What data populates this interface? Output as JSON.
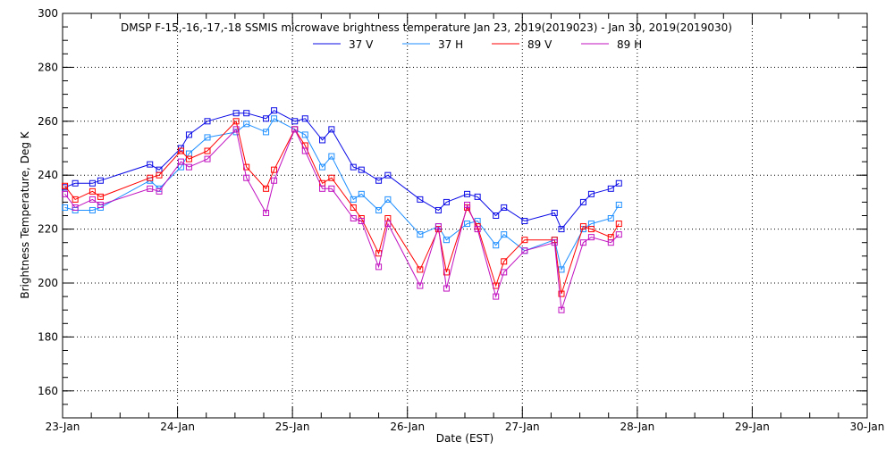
{
  "chart_data": {
    "type": "line",
    "title": "DMSP F-15,-16,-17,-18 SSMIS microwave brightness temperature Jan 23, 2019(2019023) - Jan 30, 2019(2019030)",
    "xlabel": "Date (EST)",
    "ylabel": "Brightness Temperature, Deg K",
    "xlim_days": [
      0,
      7
    ],
    "ylim": [
      150,
      300
    ],
    "x_tick_labels": [
      "23-Jan",
      "24-Jan",
      "25-Jan",
      "26-Jan",
      "27-Jan",
      "28-Jan",
      "29-Jan",
      "30-Jan"
    ],
    "y_ticks": [
      160,
      180,
      200,
      220,
      240,
      260,
      280,
      300
    ],
    "grid": true,
    "legend_placement": "top-center",
    "x_days_since_23_jan": [
      0.02,
      0.11,
      0.26,
      0.33,
      0.76,
      0.84,
      1.03,
      1.1,
      1.26,
      1.51,
      1.6,
      1.77,
      1.84,
      2.02,
      2.11,
      2.26,
      2.34,
      2.53,
      2.6,
      2.75,
      2.83,
      3.11,
      3.27,
      3.34,
      3.52,
      3.61,
      3.77,
      3.84,
      4.02,
      4.28,
      4.34,
      4.53,
      4.6,
      4.77,
      4.84
    ],
    "series": [
      {
        "name": "37 V",
        "color": "#0a0ae6",
        "values": [
          235.5,
          237,
          237,
          238,
          244,
          242,
          250,
          255,
          260,
          263,
          263,
          261,
          264,
          260,
          261,
          253,
          257,
          243,
          242,
          238,
          240,
          231,
          227,
          230,
          233,
          232,
          225,
          228,
          223,
          226,
          220,
          230,
          233,
          235,
          237
        ]
      },
      {
        "name": "37 H",
        "color": "#1e8fff",
        "values": [
          228,
          227,
          227,
          228,
          238,
          235,
          243,
          248,
          254,
          256,
          259,
          256,
          261,
          257,
          255,
          243,
          247,
          231,
          233,
          227,
          231,
          218,
          221,
          216,
          222,
          223,
          214,
          218,
          212,
          216,
          205,
          220,
          222,
          224,
          229
        ]
      },
      {
        "name": "89 V",
        "color": "#ff0000",
        "values": [
          236,
          231,
          234,
          232,
          239,
          240,
          249,
          246,
          249,
          260,
          243,
          235,
          242,
          257,
          251,
          237,
          239,
          228,
          224,
          211,
          224,
          205,
          220,
          204,
          228,
          221,
          199,
          208,
          216,
          216,
          196,
          221,
          220,
          217,
          222
        ]
      },
      {
        "name": "89 H",
        "color": "#c010c0",
        "values": [
          233,
          228,
          231,
          229,
          235,
          234,
          245,
          243,
          246,
          257,
          239,
          226,
          238,
          257,
          249,
          235,
          235,
          224,
          223,
          206,
          222,
          199,
          221,
          198,
          229,
          220,
          195,
          204,
          212,
          215,
          190,
          215,
          217,
          215,
          218
        ]
      }
    ]
  }
}
